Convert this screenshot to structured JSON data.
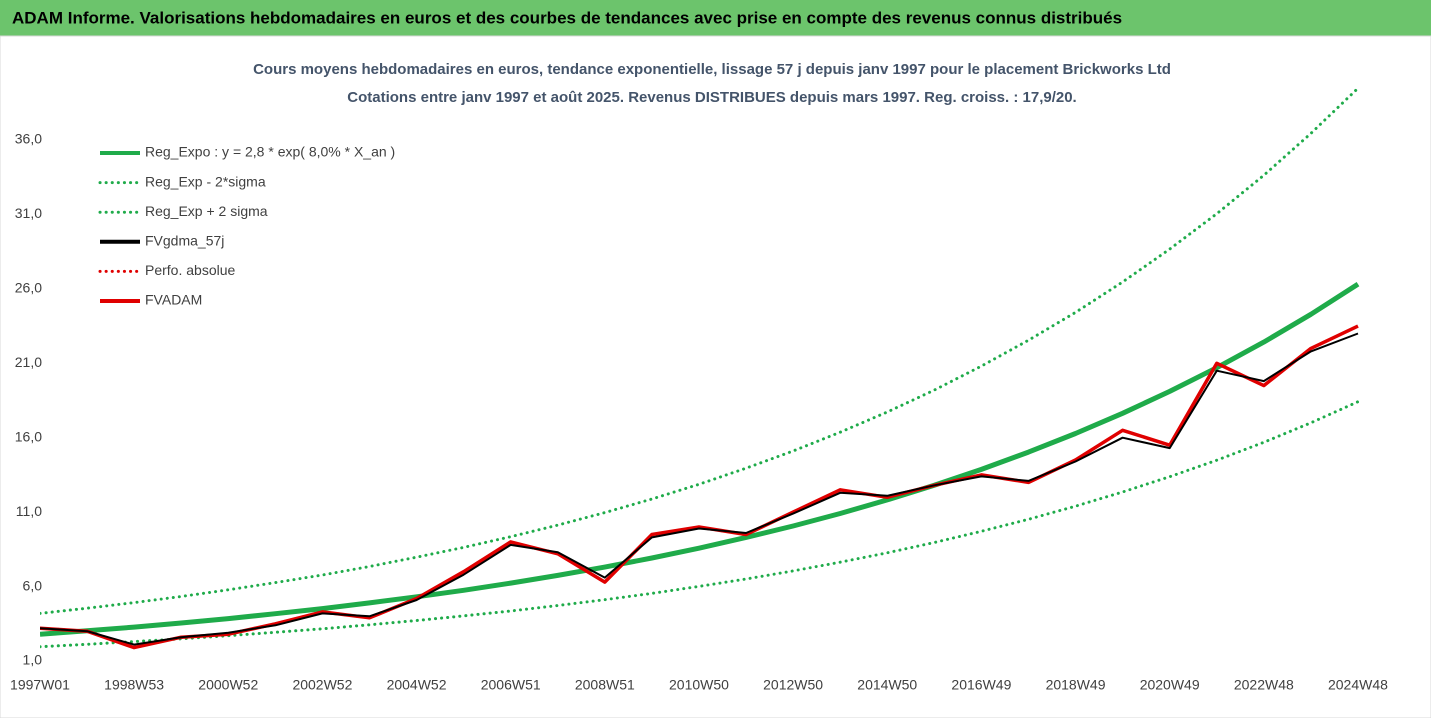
{
  "chart_data": {
    "type": "line",
    "title": "ADAM Informe. Valorisations hebdomadaires en euros et des courbes de tendances avec prise en compte des revenus connus distribués",
    "subtitle": [
      "Cours moyens hebdomadaires en euros, tendance exponentielle, lissage 57 j depuis janv 1997 pour le placement Brickworks Ltd",
      "Cotations entre janv 1997 et août 2025. Revenus DISTRIBUES depuis mars 1997. Reg. croiss. : 17,9/20."
    ],
    "categories": [
      "1997W01",
      null,
      "1998W53",
      null,
      "2000W52",
      null,
      "2002W52",
      null,
      "2004W52",
      null,
      "2006W51",
      null,
      "2008W51",
      null,
      "2010W50",
      null,
      "2012W50",
      null,
      "2014W50",
      null,
      "2016W49",
      null,
      "2018W49",
      null,
      "2020W49",
      null,
      "2022W48",
      null,
      "2024W48"
    ],
    "ylim": [
      1,
      40
    ],
    "yticks": [
      {
        "value": 1,
        "label": "1,0"
      },
      {
        "value": 6,
        "label": "6,0"
      },
      {
        "value": 11,
        "label": "11,0"
      },
      {
        "value": 16,
        "label": "16,0"
      },
      {
        "value": 21,
        "label": "21,0"
      },
      {
        "value": 26,
        "label": "26,0"
      },
      {
        "value": 31,
        "label": "31,0"
      },
      {
        "value": 36,
        "label": "36,0"
      }
    ],
    "grid": false,
    "legend": "top-left",
    "series": [
      {
        "name": "Reg_Expo : y = 2,8 * exp( 8,0% *  X_an )",
        "color": "#1fab4a",
        "linestyle": "solid",
        "values": [
          2.8,
          3.03,
          3.28,
          3.55,
          3.85,
          4.18,
          4.52,
          4.9,
          5.31,
          5.75,
          6.23,
          6.75,
          7.31,
          7.92,
          8.58,
          9.3,
          10.07,
          10.91,
          11.82,
          12.8,
          13.87,
          15.03,
          16.28,
          17.64,
          19.11,
          20.7,
          22.42,
          24.29,
          26.32
        ]
      },
      {
        "name": "Reg_Exp - 2*sigma",
        "color": "#1fab4a",
        "linestyle": "dotted",
        "values": [
          1.96,
          2.12,
          2.3,
          2.49,
          2.7,
          2.93,
          3.16,
          3.43,
          3.72,
          4.03,
          4.36,
          4.73,
          5.12,
          5.54,
          6.01,
          6.51,
          7.05,
          7.64,
          8.27,
          8.96,
          9.71,
          10.52,
          11.4,
          12.35,
          13.38,
          14.49,
          15.69,
          17.0,
          18.42
        ]
      },
      {
        "name": "Reg_Exp + 2 sigma",
        "color": "#1fab4a",
        "linestyle": "dotted",
        "values": [
          4.2,
          4.55,
          4.92,
          5.33,
          5.78,
          6.27,
          6.78,
          7.35,
          7.97,
          8.63,
          9.35,
          10.13,
          10.97,
          11.88,
          12.87,
          13.95,
          15.11,
          16.37,
          17.73,
          19.2,
          20.81,
          22.55,
          24.42,
          26.46,
          28.67,
          31.05,
          33.63,
          36.44,
          39.48
        ]
      },
      {
        "name": "FVgdma_57j",
        "color": "#000000",
        "linestyle": "solid",
        "values": [
          3.2,
          3.0,
          2.1,
          2.6,
          2.9,
          3.4,
          4.2,
          4.0,
          5.1,
          6.8,
          8.8,
          8.3,
          6.6,
          9.3,
          9.9,
          9.6,
          10.9,
          12.3,
          12.1,
          12.8,
          13.4,
          13.1,
          14.4,
          16.0,
          15.3,
          20.5,
          19.8,
          21.8,
          23.0
        ]
      },
      {
        "name": "Perfo. absolue",
        "color": "#e00000",
        "linestyle": "dotted",
        "values": [
          3.2,
          3.0,
          1.9,
          2.6,
          2.8,
          3.5,
          4.3,
          3.9,
          5.2,
          7.0,
          9.0,
          8.2,
          6.3,
          9.5,
          10.0,
          9.5,
          11.0,
          12.5,
          12.0,
          12.8,
          13.5,
          13.0,
          14.5,
          16.5,
          15.5,
          21.0,
          19.5,
          22.0,
          23.5
        ]
      },
      {
        "name": "FVADAM",
        "color": "#e00000",
        "linestyle": "solid",
        "values": [
          3.2,
          3.0,
          1.9,
          2.6,
          2.8,
          3.5,
          4.3,
          3.9,
          5.2,
          7.0,
          9.0,
          8.2,
          6.3,
          9.5,
          10.0,
          9.5,
          11.0,
          12.5,
          12.0,
          12.8,
          13.5,
          13.0,
          14.5,
          16.5,
          15.5,
          21.0,
          19.5,
          22.0,
          23.5
        ]
      }
    ]
  }
}
